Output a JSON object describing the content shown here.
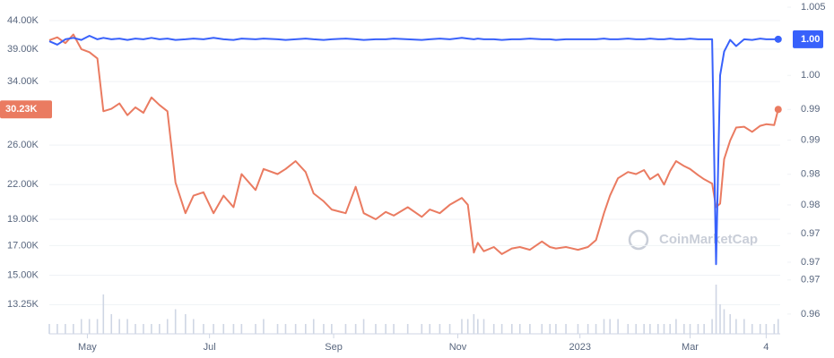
{
  "chart_data": {
    "type": "line",
    "x": [
      0,
      4,
      8,
      12,
      16,
      20,
      24,
      27,
      31,
      35,
      39,
      43,
      47,
      51,
      55,
      59,
      63,
      68,
      72,
      77,
      82,
      87,
      92,
      96,
      103,
      107,
      114,
      118,
      123,
      128,
      132,
      137,
      141,
      148,
      153,
      157,
      163,
      168,
      172,
      179,
      186,
      190,
      195,
      200,
      206,
      209,
      212,
      214,
      217,
      222,
      226,
      231,
      235,
      240,
      246,
      250,
      253,
      258,
      264,
      269,
      273,
      277,
      280,
      284,
      289,
      293,
      297,
      300,
      304,
      307,
      310,
      313,
      317,
      320,
      324,
      327,
      331,
      333,
      335,
      337,
      340,
      343,
      347,
      351,
      355,
      358,
      362,
      364
    ],
    "xlim": [
      0,
      365
    ],
    "xticks": [
      {
        "value": 19,
        "label": "May"
      },
      {
        "value": 80,
        "label": "Jul"
      },
      {
        "value": 142,
        "label": "Sep"
      },
      {
        "value": 204,
        "label": "Nov"
      },
      {
        "value": 265,
        "label": "2023"
      },
      {
        "value": 320,
        "label": "Mar"
      },
      {
        "value": 358,
        "label": "4"
      }
    ],
    "log_y": true,
    "ylim": [
      12.3,
      47.1
    ],
    "yticks": [
      {
        "value": 44,
        "label": "44.00K"
      },
      {
        "value": 39,
        "label": "39.00K"
      },
      {
        "value": 34,
        "label": "34.00K"
      },
      {
        "value": 26,
        "label": "26.00K"
      },
      {
        "value": 22,
        "label": "22.00K"
      },
      {
        "value": 19,
        "label": "19.00K"
      },
      {
        "value": 17,
        "label": "17.00K"
      },
      {
        "value": 15,
        "label": "15.00K"
      },
      {
        "value": 13.25,
        "label": "13.25K"
      }
    ],
    "y2lim": [
      0.9588,
      1.0054
    ],
    "y2ticks": [
      1.005,
      {
        "value": 0.995,
        "label": "1.00"
      },
      {
        "value": 0.99,
        "label": "0.99"
      },
      {
        "value": 0.9855,
        "label": "0.99"
      },
      {
        "value": 0.9805,
        "label": "0.98"
      },
      {
        "value": 0.976,
        "label": "0.98"
      },
      {
        "value": 0.9718,
        "label": "0.97"
      },
      {
        "value": 0.9676,
        "label": "0.97"
      },
      {
        "value": 0.965,
        "label": "0.97"
      },
      {
        "value": 0.96,
        "label": "0.96"
      }
    ],
    "grid": true,
    "series": [
      {
        "color": "#ea7b61",
        "last_label": "30.23K",
        "values": [
          40.5,
          41,
          40,
          41.5,
          39,
          38.5,
          37.5,
          30,
          30.3,
          31,
          29.5,
          30.5,
          29.8,
          31.8,
          30.8,
          30,
          22.2,
          19.5,
          21,
          21.3,
          19.5,
          21,
          20,
          23,
          21.5,
          23.5,
          23,
          23.5,
          24.3,
          23.2,
          21.2,
          20.5,
          19.8,
          19.5,
          21.8,
          19.5,
          19,
          19.6,
          19.3,
          20,
          19.2,
          19.8,
          19.5,
          20.2,
          20.8,
          20.2,
          16.5,
          17.2,
          16.6,
          16.9,
          16.4,
          16.8,
          16.9,
          16.7,
          17.3,
          16.9,
          16.8,
          16.9,
          16.7,
          16.9,
          17.4,
          19.5,
          21,
          22.6,
          23.2,
          23,
          23.4,
          22.5,
          23,
          22,
          23.3,
          24.3,
          23.8,
          23.5,
          22.9,
          22.5,
          22.1,
          20,
          20.3,
          24.5,
          26.5,
          28,
          28.1,
          27.5,
          28.2,
          28.4,
          28.3,
          30.23
        ]
      },
      {
        "color": "#3861fb",
        "axis": "y2",
        "last_label": "1.00",
        "values": [
          1.0,
          0.9995,
          1.0003,
          1.0005,
          1.0002,
          1.0008,
          1.0003,
          1.0005,
          1.0003,
          1.0004,
          1.0002,
          1.0004,
          1.0003,
          1.0005,
          1.0003,
          1.0004,
          1.0002,
          1.0003,
          1.0004,
          1.0003,
          1.0005,
          1.0003,
          1.0002,
          1.0004,
          1.0003,
          1.0004,
          1.0003,
          1.0002,
          1.0003,
          1.0004,
          1.0003,
          1.0002,
          1.0003,
          1.0004,
          1.0003,
          1.0002,
          1.0003,
          1.0003,
          1.0004,
          1.0003,
          1.0002,
          1.0003,
          1.0004,
          1.0003,
          1.0005,
          1.0004,
          1.0003,
          1.0004,
          1.0003,
          1.0003,
          1.0002,
          1.0003,
          1.0003,
          1.0004,
          1.0003,
          1.0003,
          1.0002,
          1.0003,
          1.0003,
          1.0003,
          1.0003,
          1.0004,
          1.0003,
          1.0003,
          1.0004,
          1.0003,
          1.0003,
          1.0004,
          1.0003,
          1.0003,
          1.0004,
          1.0003,
          1.0003,
          1.0004,
          1.0003,
          1.0003,
          1.0003,
          0.9673,
          0.995,
          0.9985,
          1.0002,
          0.9993,
          1.0003,
          1.0002,
          1.0004,
          1.0003,
          1.0003,
          1.0003
        ]
      }
    ],
    "volume": {
      "color": "#cfd6e4",
      "vlim": [
        0,
        10
      ],
      "values": [
        2,
        2,
        2,
        2,
        3,
        3,
        3,
        8,
        4,
        3,
        3,
        2,
        2,
        2,
        2,
        3,
        5,
        4,
        3,
        2,
        2,
        2,
        2,
        2,
        2,
        3,
        2,
        2,
        2,
        2,
        3,
        2,
        2,
        2,
        2,
        3,
        2,
        2,
        2,
        2,
        2,
        2,
        2,
        2,
        3,
        3,
        4,
        3,
        3,
        2,
        2,
        2,
        2,
        2,
        2,
        2,
        2,
        2,
        2,
        2,
        2,
        3,
        3,
        3,
        2,
        2,
        2,
        2,
        2,
        2,
        2,
        3,
        2,
        2,
        2,
        2,
        3,
        10,
        6,
        5,
        4,
        3,
        3,
        2,
        2,
        2,
        2,
        3
      ]
    },
    "watermark": "CoinMarketCap"
  }
}
